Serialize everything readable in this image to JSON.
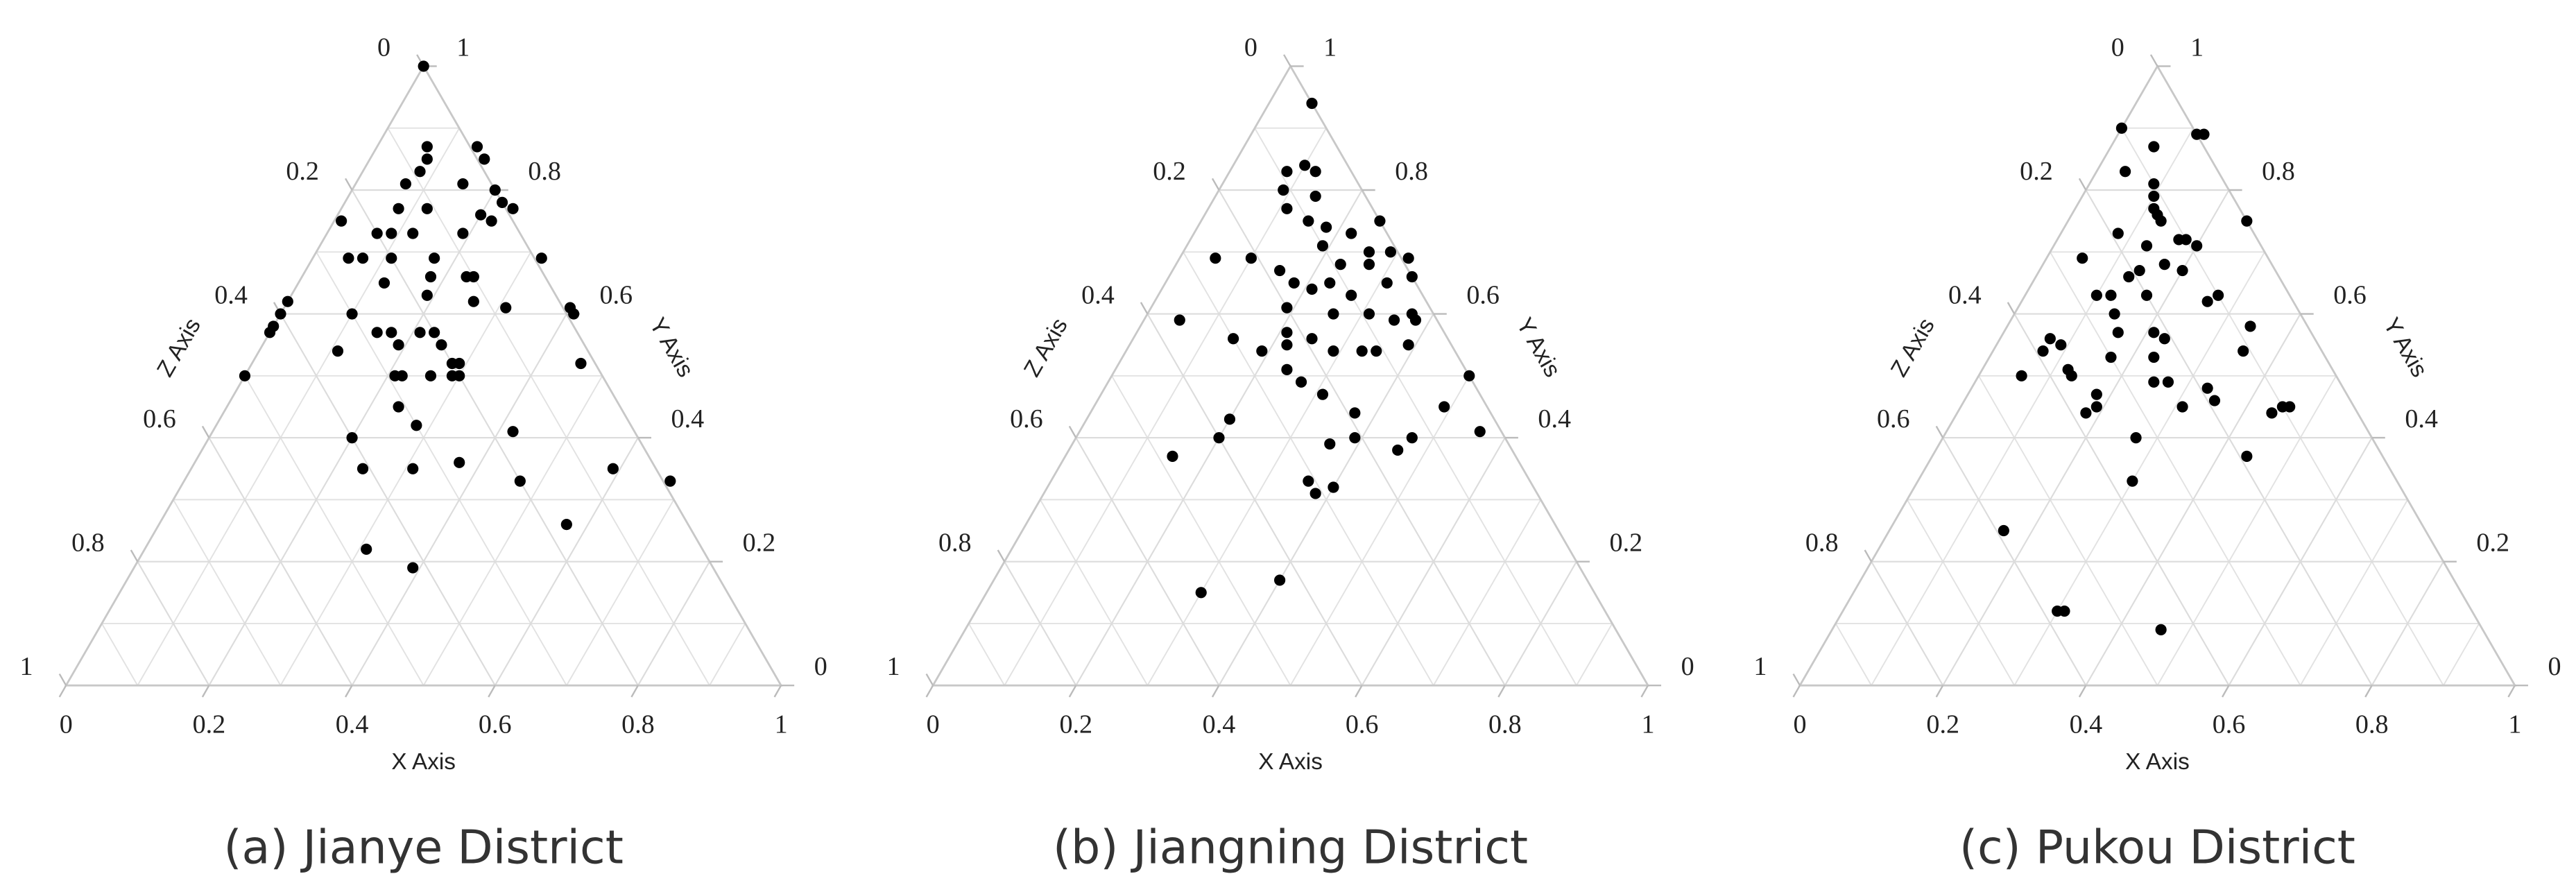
{
  "chart_data": [
    {
      "type": "ternary",
      "title": "(a) Jianye District",
      "xlabel": "X Axis",
      "ylabel": "Y Axis",
      "zlabel": "Z Axis",
      "xlim": [
        0,
        1
      ],
      "ylim": [
        0,
        1
      ],
      "zlim": [
        0,
        1
      ],
      "xticks": [
        0,
        0.2,
        0.4,
        0.6,
        0.8,
        1
      ],
      "yticks": [
        0,
        0.2,
        0.4,
        0.6,
        0.8,
        1
      ],
      "zticks": [
        0,
        0.2,
        0.4,
        0.6,
        0.8,
        1
      ],
      "minor_ticks": [
        0.1,
        0.3,
        0.5,
        0.7,
        0.9
      ],
      "grid": true,
      "series": [
        {
          "color": "#000000",
          "x": [
            0.0,
            0.07,
            0.08,
            0.14,
            0.16,
            0.08,
            0.07,
            0.15,
            0.2,
            0.22,
            0.24,
            0.12,
            0.2,
            0.01,
            0.08,
            0.07,
            0.09,
            0.12,
            0.19,
            0.22,
            0.05,
            0.07,
            0.11,
            0.17,
            0.23,
            0.24,
            0.32,
            0.12,
            0.19,
            0.18,
            0.26,
            0.31,
            0.4,
            0.41,
            0.0,
            0.0,
            0.0,
            0.0,
            0.1,
            0.15,
            0.17,
            0.19,
            0.21,
            0.23,
            0.25,
            0.11,
            0.28,
            0.29,
            0.46,
            0.21,
            0.22,
            0.26,
            0.29,
            0.3,
            0.0,
            0.24,
            0.28,
            0.2,
            0.42,
            0.24,
            0.31,
            0.37,
            0.47,
            0.59,
            0.68,
            0.57,
            0.31,
            0.39
          ],
          "y": [
            1.0,
            0.87,
            0.85,
            0.87,
            0.85,
            0.83,
            0.81,
            0.81,
            0.8,
            0.78,
            0.77,
            0.77,
            0.76,
            0.75,
            0.77,
            0.73,
            0.73,
            0.73,
            0.73,
            0.75,
            0.69,
            0.69,
            0.69,
            0.69,
            0.66,
            0.66,
            0.69,
            0.65,
            0.63,
            0.66,
            0.62,
            0.61,
            0.61,
            0.6,
            0.62,
            0.6,
            0.58,
            0.57,
            0.6,
            0.57,
            0.57,
            0.55,
            0.57,
            0.57,
            0.55,
            0.54,
            0.52,
            0.52,
            0.52,
            0.5,
            0.5,
            0.5,
            0.5,
            0.5,
            0.5,
            0.45,
            0.42,
            0.4,
            0.41,
            0.35,
            0.35,
            0.36,
            0.33,
            0.35,
            0.33,
            0.26,
            0.22,
            0.19
          ]
        }
      ]
    },
    {
      "type": "ternary",
      "title": "(b) Jiangning District",
      "xlabel": "X Axis",
      "ylabel": "Y Axis",
      "zlabel": "Z Axis",
      "xlim": [
        0,
        1
      ],
      "ylim": [
        0,
        1
      ],
      "zlim": [
        0,
        1
      ],
      "xticks": [
        0,
        0.2,
        0.4,
        0.6,
        0.8,
        1
      ],
      "yticks": [
        0,
        0.2,
        0.4,
        0.6,
        0.8,
        1
      ],
      "zticks": [
        0,
        0.2,
        0.4,
        0.6,
        0.8,
        1
      ],
      "minor_ticks": [
        0.1,
        0.3,
        0.5,
        0.7,
        0.9
      ],
      "grid": true,
      "series": [
        {
          "color": "#000000",
          "x": [
            0.06,
            0.08,
            0.1,
            0.12,
            0.09,
            0.11,
            0.14,
            0.15,
            0.18,
            0.22,
            0.25,
            0.1,
            0.15,
            0.05,
            0.19,
            0.23,
            0.26,
            0.29,
            0.32,
            0.27,
            0.34,
            0.18,
            0.21,
            0.23,
            0.27,
            0.31,
            0.05,
            0.19,
            0.26,
            0.31,
            0.35,
            0.37,
            0.38,
            0.14,
            0.19,
            0.21,
            0.22,
            0.25,
            0.29,
            0.33,
            0.35,
            0.39,
            0.24,
            0.27,
            0.31,
            0.2,
            0.2,
            0.37,
            0.49,
            0.5,
            0.56,
            0.36,
            0.39,
            0.46,
            0.47,
            0.15,
            0.36,
            0.4,
            0.38,
            0.3,
            0.4
          ],
          "y": [
            0.94,
            0.83,
            0.84,
            0.83,
            0.8,
            0.77,
            0.79,
            0.75,
            0.74,
            0.73,
            0.75,
            0.69,
            0.67,
            0.69,
            0.71,
            0.68,
            0.7,
            0.7,
            0.69,
            0.68,
            0.66,
            0.65,
            0.64,
            0.65,
            0.63,
            0.65,
            0.59,
            0.61,
            0.6,
            0.6,
            0.59,
            0.6,
            0.59,
            0.56,
            0.54,
            0.57,
            0.55,
            0.56,
            0.54,
            0.54,
            0.54,
            0.55,
            0.51,
            0.49,
            0.47,
            0.43,
            0.4,
            0.44,
            0.45,
            0.5,
            0.41,
            0.39,
            0.4,
            0.38,
            0.4,
            0.37,
            0.33,
            0.32,
            0.31,
            0.15,
            0.17
          ]
        }
      ]
    },
    {
      "type": "ternary",
      "title": "(c) Pukou District",
      "xlabel": "X Axis",
      "ylabel": "Y Axis",
      "zlabel": "Z Axis",
      "xlim": [
        0,
        1
      ],
      "ylim": [
        0,
        1
      ],
      "zlim": [
        0,
        1
      ],
      "xticks": [
        0,
        0.2,
        0.4,
        0.6,
        0.8,
        1
      ],
      "yticks": [
        0,
        0.2,
        0.4,
        0.6,
        0.8,
        1
      ],
      "zticks": [
        0,
        0.2,
        0.4,
        0.6,
        0.8,
        1
      ],
      "minor_ticks": [
        0.1,
        0.3,
        0.5,
        0.7,
        0.9
      ],
      "grid": true,
      "series": [
        {
          "color": "#000000",
          "x": [
            0.0,
            0.06,
            0.11,
            0.12,
            0.04,
            0.09,
            0.1,
            0.11,
            0.12,
            0.13,
            0.08,
            0.17,
            0.18,
            0.2,
            0.25,
            0.05,
            0.13,
            0.14,
            0.13,
            0.17,
            0.2,
            0.1,
            0.12,
            0.14,
            0.17,
            0.26,
            0.27,
            0.34,
            0.07,
            0.07,
            0.09,
            0.16,
            0.17,
            0.12,
            0.13,
            0.06,
            0.21,
            0.23,
            0.23,
            0.25,
            0.27,
            0.33,
            0.35,
            0.31,
            0.35,
            0.18,
            0.19,
            0.18,
            0.27,
            0.44,
            0.45,
            0.46,
            0.44,
            0.3,
            0.16,
            0.3,
            0.31,
            0.46
          ],
          "y": [
            0.9,
            0.87,
            0.89,
            0.89,
            0.83,
            0.81,
            0.79,
            0.77,
            0.76,
            0.75,
            0.73,
            0.72,
            0.72,
            0.71,
            0.75,
            0.69,
            0.71,
            0.67,
            0.66,
            0.68,
            0.67,
            0.63,
            0.63,
            0.6,
            0.63,
            0.62,
            0.63,
            0.58,
            0.56,
            0.54,
            0.55,
            0.57,
            0.53,
            0.51,
            0.5,
            0.5,
            0.57,
            0.56,
            0.53,
            0.49,
            0.49,
            0.48,
            0.46,
            0.45,
            0.54,
            0.47,
            0.45,
            0.44,
            0.4,
            0.44,
            0.45,
            0.45,
            0.37,
            0.33,
            0.25,
            0.12,
            0.12,
            0.09
          ]
        }
      ]
    }
  ]
}
